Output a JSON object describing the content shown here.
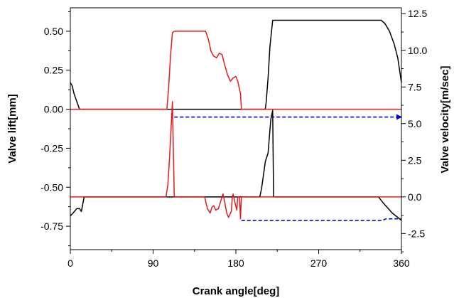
{
  "chart_data": {
    "type": "line",
    "title": "",
    "xlabel": "Crank angle[deg]",
    "ylabel_left": "Valve lift[mm]",
    "ylabel_right": "Valve velocity[m/sec]",
    "xlim": [
      0,
      360
    ],
    "ylim_left": [
      -0.9,
      0.65
    ],
    "ylim_right": [
      -3.6,
      12.9
    ],
    "x_ticks": [
      0,
      90,
      180,
      270,
      360
    ],
    "x_tick_labels": [
      "0",
      "90",
      "180",
      "270",
      "360"
    ],
    "y_left_ticks": [
      0.5,
      0.25,
      0.0,
      -0.25,
      -0.5,
      -0.75
    ],
    "y_left_tick_labels": [
      "0.50",
      "0.25",
      "0.00",
      "-0.25",
      "-0.50",
      "-0.75"
    ],
    "y_right_ticks": [
      12.5,
      10.0,
      7.5,
      5.0,
      2.5,
      0.0,
      -2.5
    ],
    "y_right_tick_labels": [
      "12.5",
      "10.0",
      "7.5",
      "5.0",
      "2.5",
      "0.0",
      "-2.5"
    ],
    "grid": false,
    "legend": "none",
    "series": [
      {
        "axis": "left",
        "color": "#000000",
        "style": "solid",
        "points": [
          [
            0,
            0.17
          ],
          [
            2,
            0.15
          ],
          [
            4,
            0.1
          ],
          [
            7,
            0.05
          ],
          [
            10,
            0.0
          ],
          [
            212,
            0.0
          ],
          [
            213,
            0.05
          ],
          [
            215,
            0.2
          ],
          [
            217,
            0.4
          ],
          [
            220,
            0.57
          ],
          [
            338,
            0.57
          ],
          [
            342,
            0.55
          ],
          [
            347,
            0.5
          ],
          [
            352,
            0.42
          ],
          [
            356,
            0.33
          ],
          [
            360,
            0.17
          ]
        ]
      },
      {
        "axis": "left",
        "color": "#e41a1c",
        "style": "solid",
        "points": [
          [
            0,
            0.0
          ],
          [
            105,
            0.0
          ],
          [
            107,
            0.15
          ],
          [
            109,
            0.35
          ],
          [
            111,
            0.49
          ],
          [
            113,
            0.5
          ],
          [
            147,
            0.5
          ],
          [
            150,
            0.45
          ],
          [
            153,
            0.37
          ],
          [
            156,
            0.34
          ],
          [
            159,
            0.33
          ],
          [
            162,
            0.36
          ],
          [
            165,
            0.35
          ],
          [
            168,
            0.28
          ],
          [
            171,
            0.22
          ],
          [
            174,
            0.18
          ],
          [
            177,
            0.2
          ],
          [
            180,
            0.21
          ],
          [
            182,
            0.18
          ],
          [
            185,
            0.1
          ],
          [
            186,
            0.0
          ],
          [
            360,
            0.0
          ]
        ]
      },
      {
        "axis": "left",
        "color": "#0000cc",
        "style": "dashed",
        "arrow": true,
        "points": [
          [
            113,
            -0.05
          ],
          [
            360,
            -0.05
          ]
        ]
      },
      {
        "axis": "right",
        "color": "#000000",
        "style": "solid",
        "points": [
          [
            0,
            -1.3
          ],
          [
            3,
            -1.1
          ],
          [
            7,
            -0.8
          ],
          [
            10,
            -0.8
          ],
          [
            12,
            -1.0
          ],
          [
            15,
            0.0
          ],
          [
            206,
            0.0
          ],
          [
            208,
            0.6
          ],
          [
            212,
            2.4
          ],
          [
            215,
            3.0
          ],
          [
            218,
            5.3
          ],
          [
            220,
            5.9
          ],
          [
            221,
            0.0
          ],
          [
            335,
            0.0
          ],
          [
            340,
            -0.4
          ],
          [
            350,
            -1.1
          ],
          [
            360,
            -1.6
          ]
        ]
      },
      {
        "axis": "right",
        "color": "#e41a1c",
        "style": "solid",
        "points": [
          [
            0,
            0.0
          ],
          [
            104,
            0.0
          ],
          [
            106,
            0.8
          ],
          [
            108,
            2.8
          ],
          [
            111,
            6.5
          ],
          [
            113,
            0.0
          ],
          [
            146,
            0.0
          ],
          [
            149,
            -0.8
          ],
          [
            152,
            -1.1
          ],
          [
            154,
            -0.7
          ],
          [
            156,
            -0.6
          ],
          [
            158,
            -0.9
          ],
          [
            161,
            -0.8
          ],
          [
            164,
            -0.2
          ],
          [
            166,
            0.2
          ],
          [
            168,
            -0.4
          ],
          [
            170,
            -1.1
          ],
          [
            172,
            -1.4
          ],
          [
            175,
            -1.0
          ],
          [
            176,
            -0.1
          ],
          [
            177,
            0.2
          ],
          [
            179,
            -0.4
          ],
          [
            181,
            -0.9
          ],
          [
            182,
            0.0
          ],
          [
            184,
            0.0
          ],
          [
            185,
            -1.5
          ],
          [
            186,
            0.0
          ],
          [
            360,
            0.0
          ]
        ]
      },
      {
        "axis": "right",
        "color": "#0000cc",
        "style": "dashed",
        "arrow": false,
        "points": [
          [
            186,
            -1.6
          ],
          [
            270,
            -1.6
          ],
          [
            340,
            -1.6
          ],
          [
            343,
            -1.5
          ],
          [
            360,
            -1.5
          ]
        ]
      }
    ]
  }
}
